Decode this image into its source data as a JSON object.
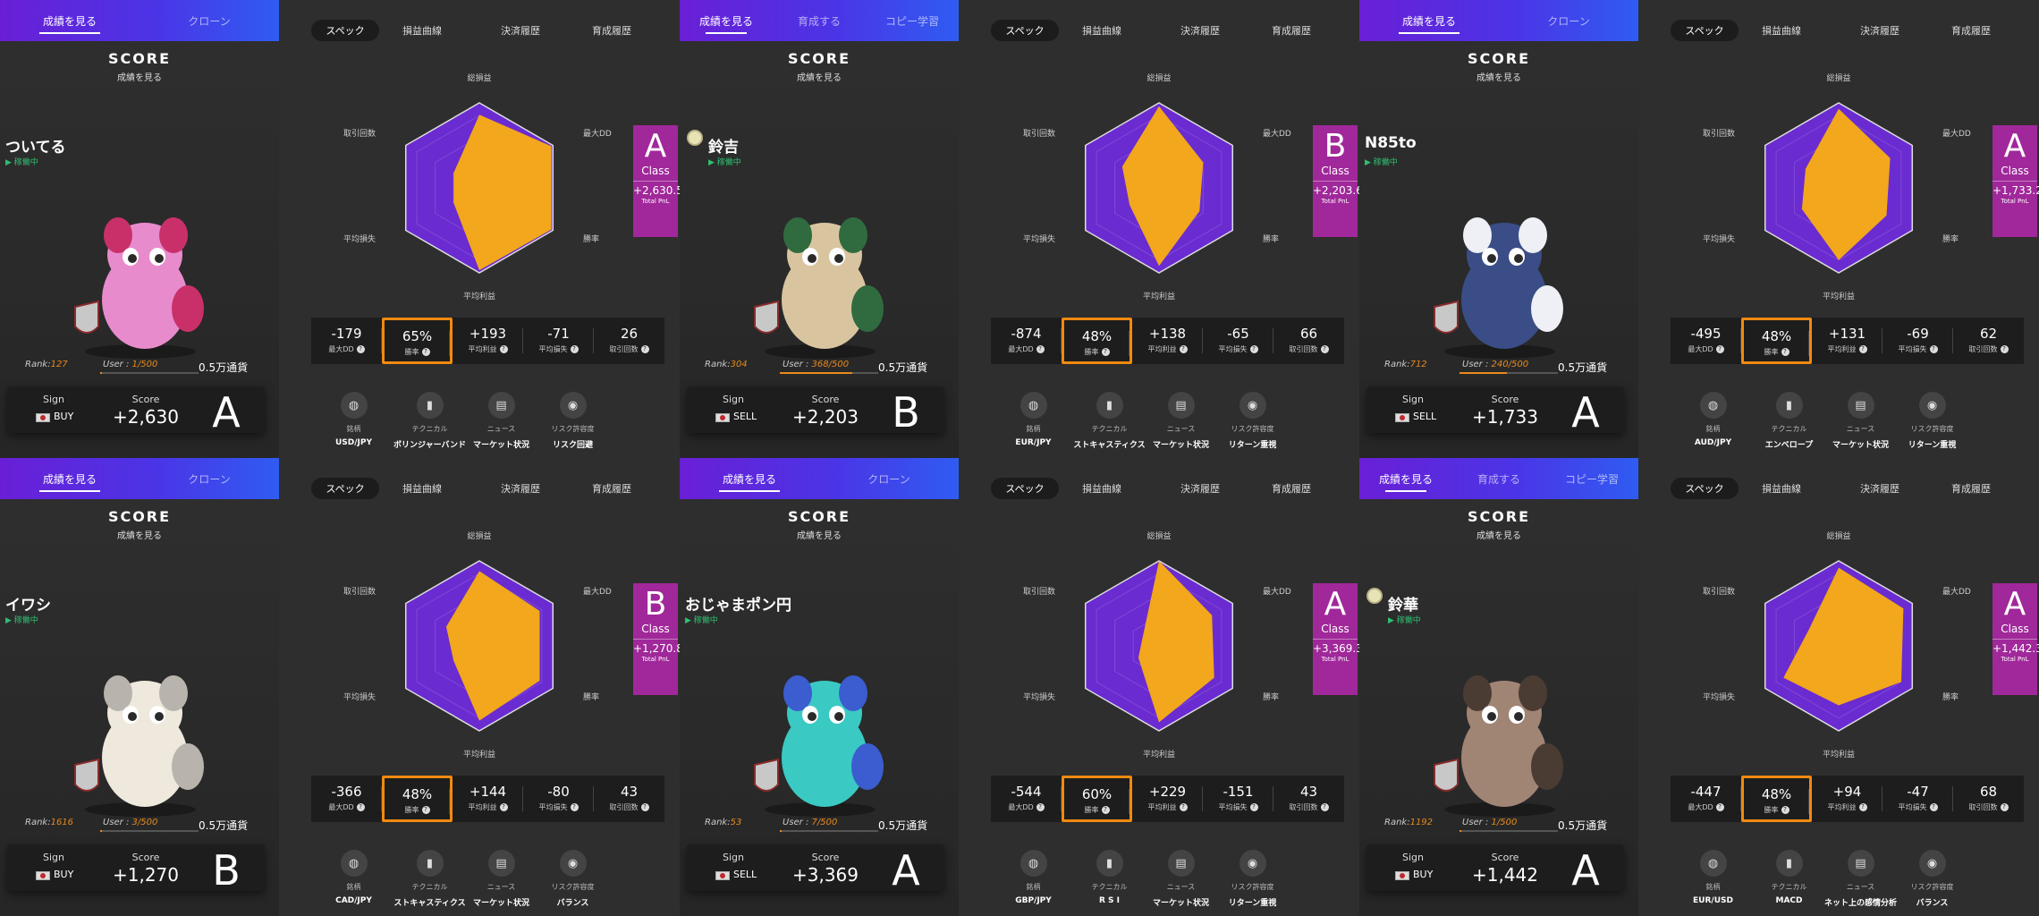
{
  "labels": {
    "score_title": "SCORE",
    "score_sub": "成績を見る",
    "status": "▶ 稼働中",
    "rank_prefix": "Rank:",
    "user_prefix": "User : ",
    "pool": "0.5万通貨",
    "sign": "Sign",
    "score": "Score",
    "class": "Class",
    "total_pnl": "Total PnL",
    "right_tabs": [
      "スペック",
      "損益曲線",
      "決済履歴",
      "育成履歴"
    ],
    "radar_axes": [
      "総損益",
      "最大DD",
      "勝率",
      "平均利益",
      "平均損失",
      "取引回数"
    ],
    "stat_labels": [
      "最大DD",
      "勝率",
      "平均利益",
      "平均損失",
      "取引回数"
    ],
    "icon_titles": [
      "銘柄",
      "テクニカル",
      "ニュース",
      "リスク許容度"
    ]
  },
  "colors": {
    "tab_gradient_start": "#6a1fd6",
    "tab_gradient_end": "#2f5cf2",
    "radar_outer": "#6a2bd0",
    "radar_fill": "#f2a71c",
    "class_box": "#a0289a",
    "highlight": "#f08a10",
    "active_status": "#2fbf71"
  },
  "cards": [
    {
      "tabs": [
        "成績を見る",
        "クローン"
      ],
      "name": "ついてる",
      "badge": false,
      "avatar": "pink-bird-character",
      "rank": "127",
      "user": "1/500",
      "user_fill": 0.002,
      "sign": "BUY",
      "flag": "flag-icon",
      "score": "+2,630",
      "grade": "A",
      "class_grade": "A",
      "total_pnl": "+2,630.5",
      "stats": [
        "-179",
        "65%",
        "+193",
        "-71",
        "26"
      ],
      "icon_values": [
        "USD/JPY",
        "ボリンジャーバンド",
        "マーケット状況",
        "リスク回避"
      ],
      "radar": [
        0.86,
        0.98,
        0.98,
        0.97,
        0.35,
        0.35
      ]
    },
    {
      "tabs": [
        "成績を見る",
        "育成する",
        "コピー学習"
      ],
      "name": "鈴吉",
      "badge": true,
      "avatar": "green-lion-character",
      "rank": "304",
      "user": "368/500",
      "user_fill": 0.736,
      "sign": "SELL",
      "flag": "flag-icon",
      "score": "+2,203",
      "grade": "B",
      "class_grade": "B",
      "total_pnl": "+2,203.6",
      "stats": [
        "-874",
        "48%",
        "+138",
        "-65",
        "66"
      ],
      "icon_values": [
        "EUR/JPY",
        "ストキャスティクス",
        "マーケット状況",
        "リターン重視"
      ],
      "radar": [
        0.96,
        0.6,
        0.55,
        0.92,
        0.4,
        0.5
      ]
    },
    {
      "tabs": [
        "成績を見る",
        "クローン"
      ],
      "name": "N85to",
      "badge": false,
      "avatar": "blue-wolf-character",
      "rank": "712",
      "user": "240/500",
      "user_fill": 0.48,
      "sign": "SELL",
      "flag": "flag-icon",
      "score": "+1,733",
      "grade": "A",
      "class_grade": "A",
      "total_pnl": "+1,733.2",
      "stats": [
        "-495",
        "48%",
        "+131",
        "-69",
        "62"
      ],
      "icon_values": [
        "AUD/JPY",
        "エンベロープ",
        "マーケット状況",
        "リターン重視"
      ],
      "radar": [
        0.93,
        0.7,
        0.65,
        0.85,
        0.5,
        0.45
      ]
    },
    {
      "tabs": [
        "成績を見る",
        "クローン"
      ],
      "name": "イワシ",
      "badge": false,
      "avatar": "white-monkey-character",
      "rank": "1616",
      "user": "3/500",
      "user_fill": 0.006,
      "sign": "BUY",
      "flag": "flag-icon",
      "score": "+1,270",
      "grade": "B",
      "class_grade": "B",
      "total_pnl": "+1,270.8",
      "stats": [
        "-366",
        "48%",
        "+144",
        "-80",
        "43"
      ],
      "icon_values": [
        "CAD/JPY",
        "ストキャスティクス",
        "マーケット状況",
        "バランス"
      ],
      "radar": [
        0.88,
        0.82,
        0.82,
        0.88,
        0.35,
        0.45
      ]
    },
    {
      "tabs": [
        "成績を見る",
        "クローン"
      ],
      "name": "おじゃまポン円",
      "badge": false,
      "avatar": "teal-dragon-character",
      "rank": "53",
      "user": "7/500",
      "user_fill": 0.014,
      "sign": "SELL",
      "flag": "flag-icon",
      "score": "+3,369",
      "grade": "A",
      "class_grade": "A",
      "total_pnl": "+3,369.3",
      "stats": [
        "-544",
        "60%",
        "+229",
        "-151",
        "43"
      ],
      "icon_values": [
        "GBP/JPY",
        "R S I",
        "マーケット状況",
        "リターン重視"
      ],
      "radar": [
        1.0,
        0.72,
        0.75,
        0.9,
        0.28,
        0.22
      ]
    },
    {
      "tabs": [
        "成績を見る",
        "育成する",
        "コピー学習"
      ],
      "name": "鈴華",
      "badge": true,
      "avatar": "robot-bear-character",
      "rank": "1192",
      "user": "1/500",
      "user_fill": 0.002,
      "sign": "BUY",
      "flag": "flag-icon",
      "score": "+1,442",
      "grade": "A",
      "class_grade": "A",
      "total_pnl": "+1,442.3",
      "stats": [
        "-447",
        "48%",
        "+94",
        "-47",
        "68"
      ],
      "icon_values": [
        "EUR/USD",
        "MACD",
        "ネット上の感情分析",
        "バランス"
      ],
      "radar": [
        0.92,
        0.88,
        0.85,
        0.7,
        0.75,
        0.4
      ]
    }
  ]
}
